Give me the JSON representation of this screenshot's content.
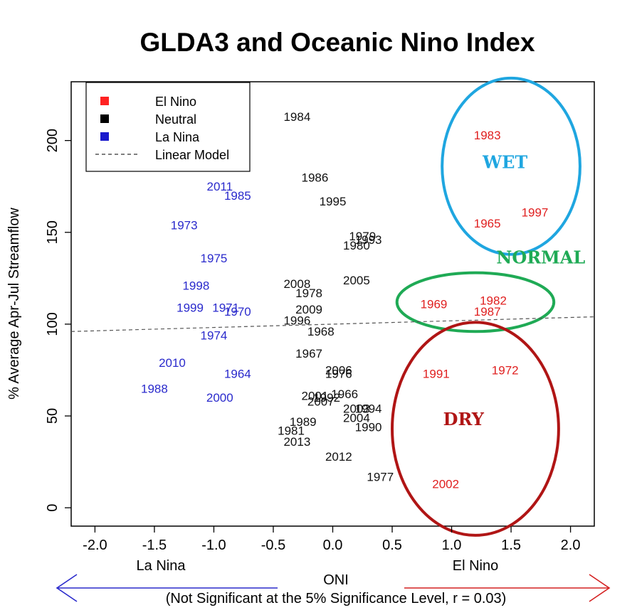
{
  "chart_data": {
    "type": "scatter",
    "title": "GLDA3 and Oceanic Nino Index",
    "xlabel": "ONI",
    "ylabel": "% Average Apr-Jul Streamflow",
    "subtitle": "(Not Significant at the 5% Significance Level, r = 0.03)",
    "xlim": [
      -2.2,
      2.2
    ],
    "ylim": [
      -10,
      232
    ],
    "x_ticks": [
      -2.0,
      -1.5,
      -1.0,
      -0.5,
      0.0,
      0.5,
      1.0,
      1.5,
      2.0
    ],
    "x_tick_labels": [
      "-2.0",
      "-1.5",
      "-1.0",
      "-0.5",
      "0.0",
      "0.5",
      "1.0",
      "1.5",
      "2.0"
    ],
    "y_ticks": [
      0,
      50,
      100,
      150,
      200
    ],
    "y_tick_labels": [
      "0",
      "50",
      "100",
      "150",
      "200"
    ],
    "grid": false,
    "legend_position": "top-left",
    "legend": [
      {
        "label": "El Nino",
        "color": "#ff2222",
        "marker": "square"
      },
      {
        "label": "Neutral",
        "color": "#000000",
        "marker": "square"
      },
      {
        "label": "La Nina",
        "color": "#1a1acc",
        "marker": "square"
      },
      {
        "label": "Linear Model",
        "color": "#555555",
        "marker": "dashed-line"
      }
    ],
    "linear_model": {
      "x": [
        -2.2,
        2.2
      ],
      "y": [
        96,
        104
      ]
    },
    "series": [
      {
        "name": "El Nino",
        "color": "#e02020",
        "points": [
          {
            "label": "1983",
            "x": 1.3,
            "y": 203
          },
          {
            "label": "1997",
            "x": 1.7,
            "y": 161
          },
          {
            "label": "1965",
            "x": 1.3,
            "y": 155
          },
          {
            "label": "1969",
            "x": 0.85,
            "y": 111
          },
          {
            "label": "1982",
            "x": 1.35,
            "y": 113
          },
          {
            "label": "1987",
            "x": 1.3,
            "y": 107
          },
          {
            "label": "1991",
            "x": 0.87,
            "y": 73
          },
          {
            "label": "1972",
            "x": 1.45,
            "y": 75
          },
          {
            "label": "2002",
            "x": 0.95,
            "y": 13
          }
        ]
      },
      {
        "name": "Neutral",
        "color": "#111111",
        "points": [
          {
            "label": "1984",
            "x": -0.3,
            "y": 213
          },
          {
            "label": "1986",
            "x": -0.15,
            "y": 180
          },
          {
            "label": "1995",
            "x": 0.0,
            "y": 167
          },
          {
            "label": "1979",
            "x": 0.25,
            "y": 148
          },
          {
            "label": "1993",
            "x": 0.3,
            "y": 146
          },
          {
            "label": "1980",
            "x": 0.2,
            "y": 143
          },
          {
            "label": "2005",
            "x": 0.2,
            "y": 124
          },
          {
            "label": "2008",
            "x": -0.3,
            "y": 122
          },
          {
            "label": "1978",
            "x": -0.2,
            "y": 117
          },
          {
            "label": "2009",
            "x": -0.2,
            "y": 108
          },
          {
            "label": "1996",
            "x": -0.3,
            "y": 102
          },
          {
            "label": "1968",
            "x": -0.1,
            "y": 96
          },
          {
            "label": "1967",
            "x": -0.2,
            "y": 84
          },
          {
            "label": "2006",
            "x": 0.05,
            "y": 75
          },
          {
            "label": "1976",
            "x": 0.05,
            "y": 73
          },
          {
            "label": "1966",
            "x": 0.1,
            "y": 62
          },
          {
            "label": "2001",
            "x": -0.15,
            "y": 61
          },
          {
            "label": "1992",
            "x": -0.05,
            "y": 60
          },
          {
            "label": "2007",
            "x": -0.1,
            "y": 58
          },
          {
            "label": "2003",
            "x": 0.2,
            "y": 54
          },
          {
            "label": "1994",
            "x": 0.3,
            "y": 54
          },
          {
            "label": "2004",
            "x": 0.2,
            "y": 49
          },
          {
            "label": "1989",
            "x": -0.25,
            "y": 47
          },
          {
            "label": "1981",
            "x": -0.35,
            "y": 42
          },
          {
            "label": "1990",
            "x": 0.3,
            "y": 44
          },
          {
            "label": "2013",
            "x": -0.3,
            "y": 36
          },
          {
            "label": "2012",
            "x": 0.05,
            "y": 28
          },
          {
            "label": "1977",
            "x": 0.4,
            "y": 17
          }
        ]
      },
      {
        "name": "La Nina",
        "color": "#2a2acc",
        "points": [
          {
            "label": "2011",
            "x": -0.95,
            "y": 175
          },
          {
            "label": "1985",
            "x": -0.8,
            "y": 170
          },
          {
            "label": "1973",
            "x": -1.25,
            "y": 154
          },
          {
            "label": "1975",
            "x": -1.0,
            "y": 136
          },
          {
            "label": "1998",
            "x": -1.15,
            "y": 121
          },
          {
            "label": "1999",
            "x": -1.2,
            "y": 109
          },
          {
            "label": "1971",
            "x": -0.9,
            "y": 109
          },
          {
            "label": "1970",
            "x": -0.8,
            "y": 107
          },
          {
            "label": "1974",
            "x": -1.0,
            "y": 94
          },
          {
            "label": "2010",
            "x": -1.35,
            "y": 79
          },
          {
            "label": "1964",
            "x": -0.8,
            "y": 73
          },
          {
            "label": "1988",
            "x": -1.5,
            "y": 65
          },
          {
            "label": "2000",
            "x": -0.95,
            "y": 60
          }
        ]
      }
    ],
    "zones": [
      {
        "label": "WET",
        "color": "#1fa6e0",
        "text_color": "#1fa6e0",
        "cx": 1.5,
        "cy": 186,
        "rx": 0.58,
        "ry": 48
      },
      {
        "label": "NORMAL",
        "color": "#1faa55",
        "text_color": "#1faa55",
        "cx": 1.2,
        "cy": 112,
        "rx": 0.66,
        "ry": 16
      },
      {
        "label": "DRY",
        "color": "#b01515",
        "text_color": "#b01515",
        "cx": 1.2,
        "cy": 43,
        "rx": 0.7,
        "ry": 58
      }
    ],
    "direction_labels": {
      "left": {
        "label": "La Nina",
        "color": "#2a2acc"
      },
      "right": {
        "label": "El Nino",
        "color": "#d42020"
      }
    }
  }
}
